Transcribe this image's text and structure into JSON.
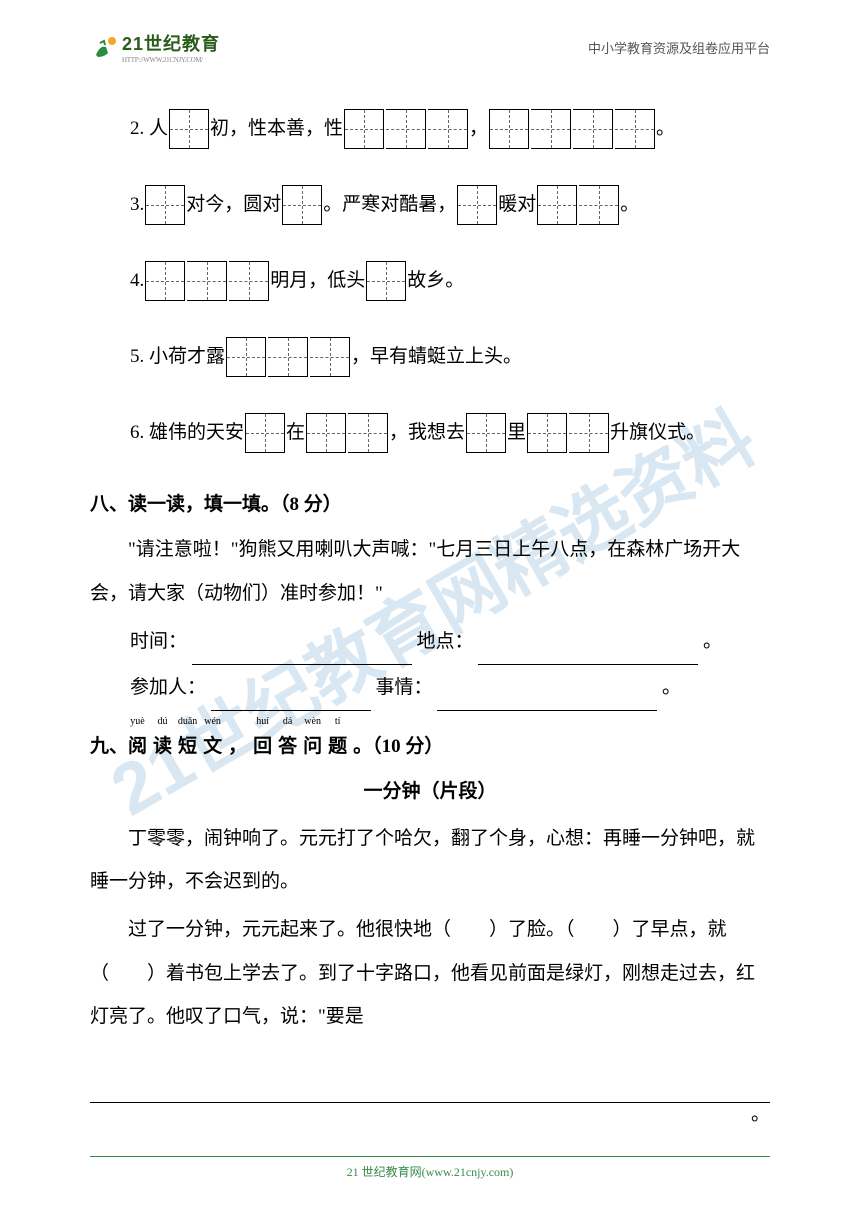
{
  "header": {
    "logo": "21世纪教育",
    "logo_sub": "HTTP://WWW.21CNJY.COM/",
    "right": "中小学教育资源及组卷应用平台"
  },
  "watermark": "21世纪教育网精选资料",
  "q2": {
    "prefix": "2. 人",
    "t1": "初，性本善，性",
    "comma": "，",
    "period": "。"
  },
  "q3": {
    "prefix": "3.",
    "t1": "对今，圆对",
    "t2": "。严寒对酷暑，",
    "t3": "暖对",
    "period": "。"
  },
  "q4": {
    "prefix": "4.",
    "t1": "明月，低头",
    "t2": "故乡。"
  },
  "q5": {
    "prefix": "5. 小荷才露",
    "t1": "，早有蜻蜓立上头。"
  },
  "q6": {
    "prefix": "6. 雄伟的天安",
    "t1": "在",
    "t2": "，我想去",
    "t3": "里",
    "t4": "升旗仪式。"
  },
  "section8": {
    "heading": "八、读一读，填一填。（8 分）",
    "para": "\"请注意啦！\"狗熊又用喇叭大声喊：\"七月三日上午八点，在森林广场开大会，请大家（动物们）准时参加！\"",
    "time_label": "时间：",
    "place_label": "地点：",
    "people_label": "参加人：",
    "thing_label": "事情：",
    "period": "。"
  },
  "section9": {
    "heading_plain": "九、",
    "pinyin": [
      "yuè",
      "dú",
      "duǎn",
      "wén",
      "",
      "huí",
      "dá",
      "wèn",
      "tí"
    ],
    "chars": [
      "阅",
      "读",
      "短",
      "文",
      "，",
      "回",
      "答",
      "问",
      "题"
    ],
    "suffix": "。（10 分）",
    "title": "一分钟（片段）",
    "p1": "丁零零，闹钟响了。元元打了个哈欠，翻了个身，心想：再睡一分钟吧，就睡一分钟，不会迟到的。",
    "p2a": "过了一分钟，元元起来了。他很快地（　　）了脸。（　　）了早点，就（　　）着书包上学去了。到了十字路口，他看见前面是绿灯，刚想走过去，红灯亮了。他叹了口气，说：\"要是"
  },
  "footer": {
    "text": "21 世纪教育网(www.21cnjy.com)"
  },
  "colors": {
    "text": "#000000",
    "watermark": "rgba(100,160,200,0.25)",
    "footer": "#3a8a4a",
    "logo": "#2a5c1a"
  }
}
